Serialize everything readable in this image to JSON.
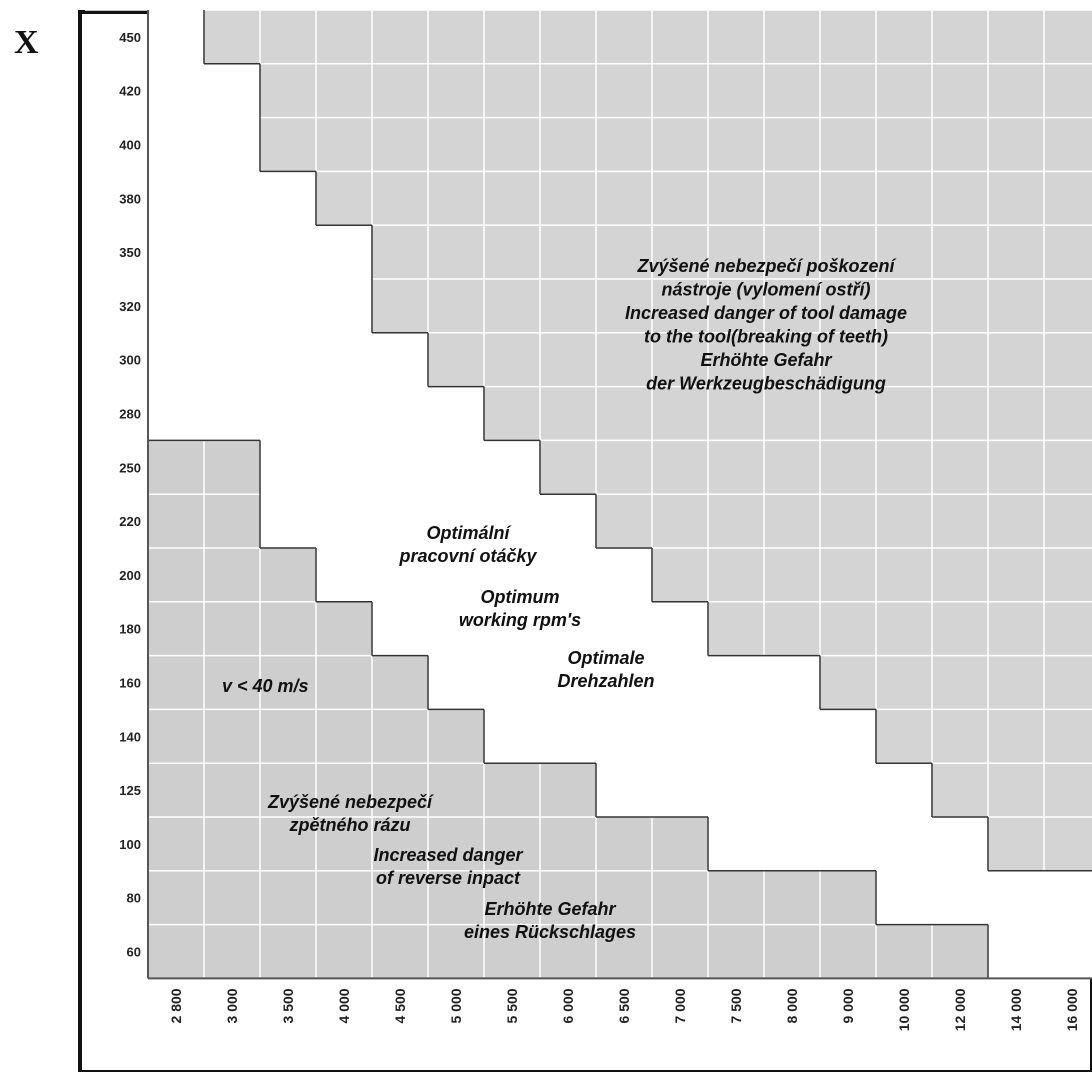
{
  "corner_mark": "X",
  "chart_data": {
    "type": "heatmap",
    "y_ticks": [
      "450",
      "420",
      "400",
      "380",
      "350",
      "320",
      "300",
      "280",
      "250",
      "220",
      "200",
      "180",
      "160",
      "140",
      "125",
      "100",
      "80",
      "60"
    ],
    "x_ticks": [
      "2 800",
      "3 000",
      "3 500",
      "4 000",
      "4 500",
      "5 000",
      "5 500",
      "6 000",
      "6 500",
      "7 000",
      "7 500",
      "8 000",
      "9 000",
      "10 000",
      "12 000",
      "14 000",
      "16 000"
    ],
    "zones": {
      "high": {
        "color": "#d4d4d4",
        "meaning": "increased danger of tool damage"
      },
      "optimal": {
        "color": "#ffffff",
        "meaning": "optimum working rpm"
      },
      "low": {
        "color": "#cecece",
        "meaning": "increased danger of reverse impact"
      }
    },
    "optimal_band_columns_by_row": [
      [
        0,
        0
      ],
      [
        0,
        1
      ],
      [
        0,
        1
      ],
      [
        0,
        2
      ],
      [
        0,
        3
      ],
      [
        0,
        3
      ],
      [
        0,
        4
      ],
      [
        0,
        5
      ],
      [
        2,
        6
      ],
      [
        2,
        7
      ],
      [
        3,
        8
      ],
      [
        4,
        9
      ],
      [
        5,
        11
      ],
      [
        6,
        12
      ],
      [
        8,
        13
      ],
      [
        10,
        14
      ],
      [
        13,
        16
      ],
      [
        15,
        16
      ]
    ],
    "grid": true,
    "annotations": {
      "high_zone": [
        "Zvýšené nebezpečí poškození",
        "nástroje (vylomení ostří)",
        "Increased danger of tool damage",
        "to the tool(breaking of teeth)",
        "Erhöhte Gefahr",
        "der Werkzeugbeschädigung"
      ],
      "optimal_zone": [
        "Optimální",
        "pracovní otáčky",
        "Optimum",
        "working rpm's",
        "Optimale",
        "Drehzahlen"
      ],
      "speed_limit": "v < 40 m/s",
      "low_zone": [
        "Zvýšené nebezpečí",
        "zpětného rázu",
        "Increased danger",
        "of reverse inpact",
        "Erhöhte Gefahr",
        "eines Rückschlages"
      ]
    }
  }
}
